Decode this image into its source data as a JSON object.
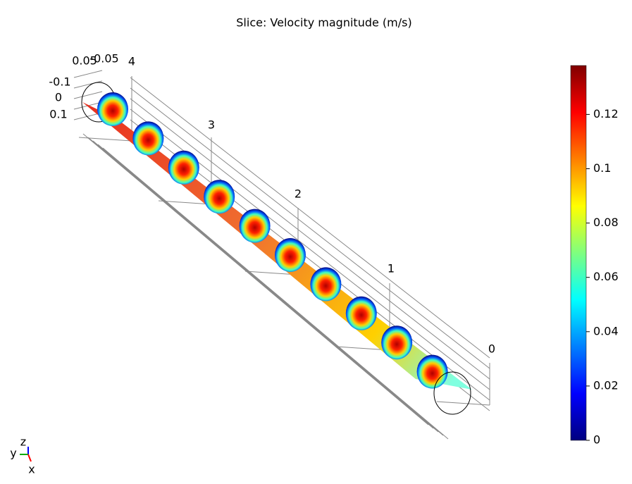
{
  "chart_data": {
    "type": "slice3d",
    "title": "Slice: Velocity magnitude (m/s)",
    "axis_tick_labels": [
      "0.05",
      "-0.05",
      "4",
      "3",
      "2",
      "1",
      "0",
      "-0.1",
      "0",
      "0.1"
    ],
    "triad": [
      "z",
      "y",
      "x"
    ],
    "colorbar": {
      "range": [
        0,
        0.138
      ],
      "ticks": [
        0,
        0.02,
        0.04,
        0.06,
        0.08,
        0.1,
        0.12
      ]
    }
  }
}
